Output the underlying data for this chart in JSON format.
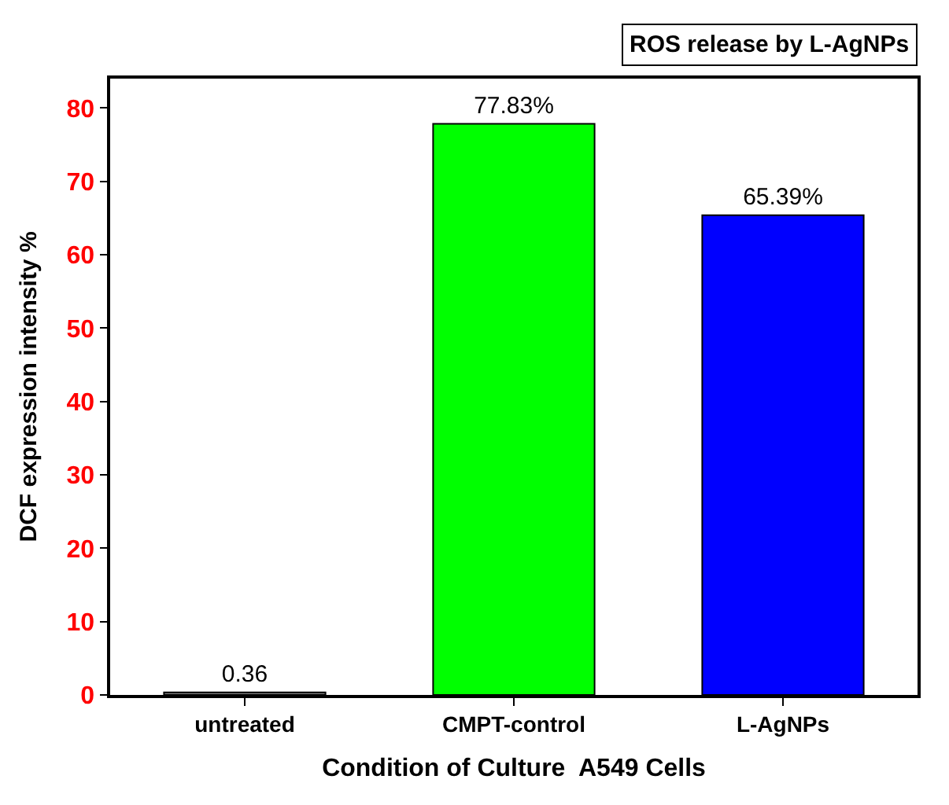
{
  "chart_data": {
    "type": "bar",
    "title": "ROS release by L-AgNPs",
    "xlabel": "Condition of Culture  A549 Cells",
    "ylabel": "DCF expression intensity %",
    "categories": [
      "untreated",
      "CMPT-control",
      "L-AgNPs"
    ],
    "values": [
      0.36,
      77.83,
      65.39
    ],
    "colors": [
      "#808080",
      "#00ff00",
      "#0000ff"
    ],
    "value_labels": [
      "0.36",
      "77.83%",
      "65.39%"
    ],
    "ylim": [
      0,
      84
    ],
    "yticks": [
      0,
      10,
      20,
      30,
      40,
      50,
      60,
      70,
      80
    ]
  }
}
